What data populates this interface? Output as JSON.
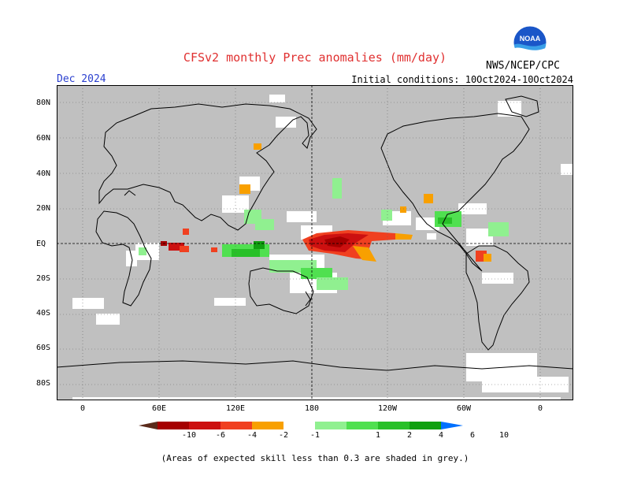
{
  "header": {
    "title": "CFSv2 monthly Prec anomalies (mm/day)",
    "valid_month": "Dec 2024",
    "initial_conditions": "Initial conditions: 10Oct2024-10Oct2024",
    "agency": "NWS/NCEP/CPC",
    "logo_text": "NOAA"
  },
  "map": {
    "latitude_labels": [
      "80N",
      "60N",
      "40N",
      "20N",
      "EQ",
      "20S",
      "40S",
      "60S",
      "80S"
    ],
    "longitude_labels": [
      "0",
      "60E",
      "120E",
      "180",
      "120W",
      "60W",
      "0"
    ],
    "background_color": "#c0c0c0",
    "land_outline_color": "#000000"
  },
  "legend": {
    "tick_labels": [
      "-10",
      "-6",
      "-4",
      "-2",
      "-1",
      "1",
      "2",
      "4",
      "6",
      "10"
    ],
    "colors": [
      "#5a2a1a",
      "#a50000",
      "#cc1010",
      "#f04020",
      "#f8a000",
      "#ffffff",
      "#90f090",
      "#50e050",
      "#28c028",
      "#10a010",
      "#0070ff"
    ],
    "footnote": "(Areas of expected skill less than 0.3 are shaded in grey.)"
  }
}
